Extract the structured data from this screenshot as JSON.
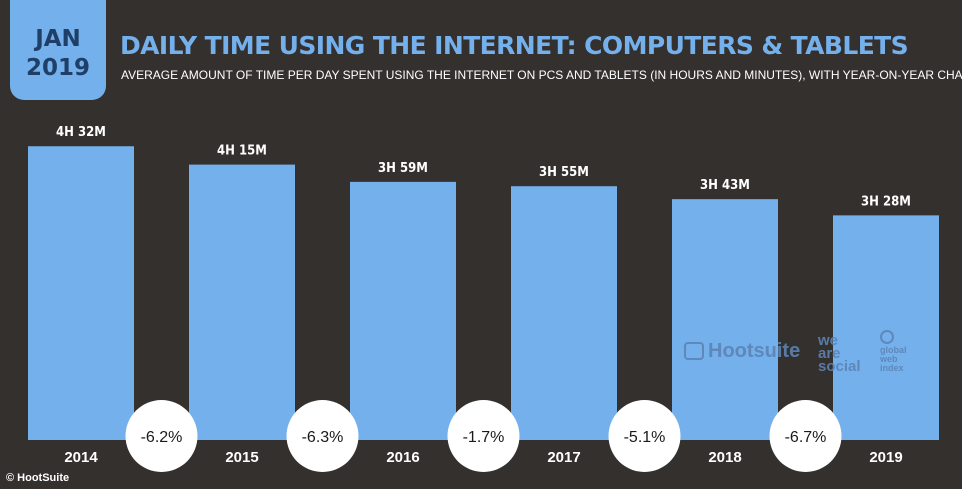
{
  "badge": {
    "month": "JAN",
    "year": "2019"
  },
  "header": {
    "title": "DAILY TIME USING THE INTERNET: COMPUTERS & TABLETS",
    "subtitle": "AVERAGE AMOUNT OF TIME PER DAY SPENT USING THE INTERNET ON PCS AND TABLETS (IN HOURS AND MINUTES), WITH YEAR-ON-YEAR CHANGE"
  },
  "colors": {
    "background": "#34302e",
    "bar": "#74b0ec",
    "accent": "#74b0ec",
    "circle": "#ffffff",
    "text_dark": "#1a1a1a"
  },
  "logos": {
    "hootsuite": "Hootsuite",
    "we_are_social": "we are social",
    "gwi": "global web index",
    "hootsuite_icon": "owl-icon",
    "gwi_icon": "globe-icon"
  },
  "footer": {
    "credit": "© HootSuite"
  },
  "chart_data": {
    "type": "bar",
    "categories": [
      "2014",
      "2015",
      "2016",
      "2017",
      "2018",
      "2019"
    ],
    "values": [
      272,
      255,
      239,
      235,
      223,
      208
    ],
    "value_labels": [
      "4H 32M",
      "4H 15M",
      "3H 59M",
      "3H 55M",
      "3H 43M",
      "3H 28M"
    ],
    "unit": "minutes",
    "changes": [
      "-6.2%",
      "-6.3%",
      "-1.7%",
      "-5.1%",
      "-6.7%"
    ],
    "grid": false,
    "legend": "none"
  }
}
